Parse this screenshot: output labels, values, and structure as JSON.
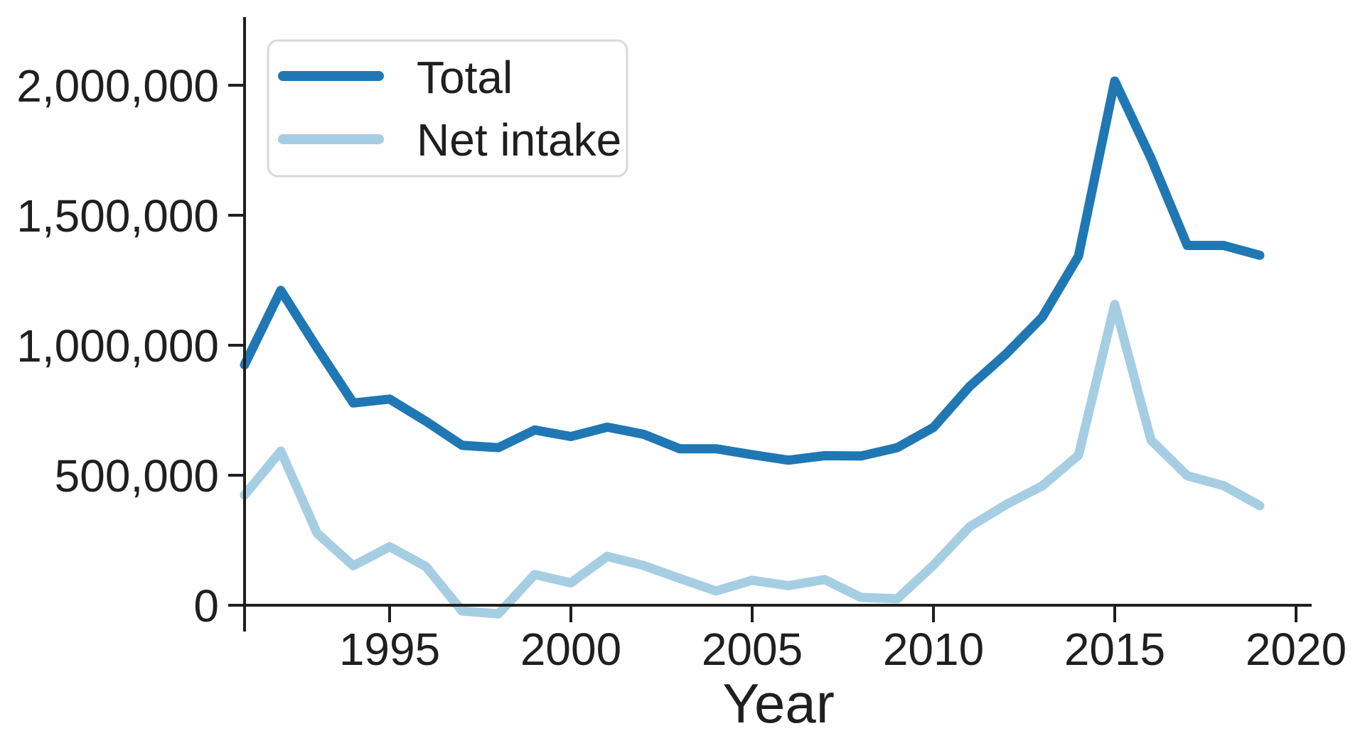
{
  "chart_data": {
    "type": "line",
    "title": "",
    "xlabel": "Year",
    "ylabel": "",
    "grid": false,
    "legend_position": "upper left",
    "xlim": [
      1991,
      2020.2
    ],
    "ylim": [
      -100000,
      2265000
    ],
    "x": [
      1991,
      1992,
      1993,
      1994,
      1995,
      1996,
      1997,
      1998,
      1999,
      2000,
      2001,
      2002,
      2003,
      2004,
      2005,
      2006,
      2007,
      2008,
      2009,
      2010,
      2011,
      2012,
      2013,
      2014,
      2015,
      2016,
      2017,
      2018,
      2019
    ],
    "series": [
      {
        "name": "Total",
        "color": "#1f78b4",
        "values": [
          925000,
          1211000,
          990000,
          778000,
          793000,
          708000,
          615000,
          606000,
          674000,
          649000,
          685000,
          658000,
          602000,
          602000,
          579000,
          558000,
          575000,
          574000,
          606000,
          684000,
          842000,
          966000,
          1108000,
          1343000,
          2016000,
          1719000,
          1384000,
          1384000,
          1346000
        ]
      },
      {
        "name": "Net intake",
        "color": "#a6cee3",
        "values": [
          424000,
          593000,
          277000,
          152000,
          225000,
          149000,
          -22000,
          -33000,
          118000,
          86000,
          188000,
          153000,
          103000,
          55000,
          96000,
          75000,
          99000,
          30000,
          25000,
          154000,
          302000,
          387000,
          459000,
          577000,
          1157000,
          635000,
          498000,
          460000,
          383000
        ]
      }
    ],
    "x_ticks": {
      "values": [
        1995,
        2000,
        2005,
        2010,
        2015,
        2020
      ],
      "labels": [
        "1995",
        "2000",
        "2005",
        "2010",
        "2015",
        "2020"
      ]
    },
    "y_ticks": {
      "values": [
        0,
        500000,
        1000000,
        1500000,
        2000000
      ],
      "labels": [
        "0",
        "500,000",
        "1,000,000",
        "1,500,000",
        "2,000,000"
      ]
    },
    "legend": {
      "entries": [
        "Total",
        "Net intake"
      ]
    },
    "axis_color": "#1f1f1f",
    "legend_border_color": "#d9d9d9",
    "background_color": "#ffffff"
  }
}
